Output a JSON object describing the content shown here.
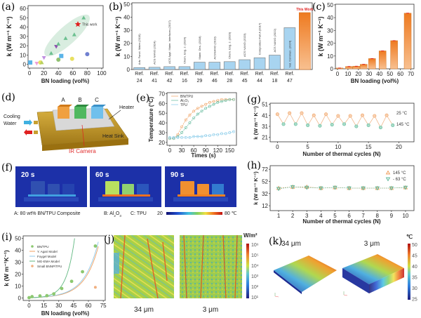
{
  "labels": {
    "a": "(a)",
    "b": "(b)",
    "c": "(c)",
    "d": "(d)",
    "e": "(e)",
    "f": "(f)",
    "g": "(g)",
    "h": "(h)",
    "i": "(i)",
    "j": "(j)",
    "k": "(k)"
  },
  "colors": {
    "accent": "#f08a30",
    "teal": "#5fb89a",
    "blue_bar": "#a8d4f0",
    "red": "#e02020"
  },
  "chart_data": [
    {
      "id": "a",
      "type": "scatter",
      "xlabel": "BN loading (vol%)",
      "ylabel": "k (W m⁻¹ K⁻¹)",
      "xlim": [
        0,
        100
      ],
      "ylim": [
        0,
        60
      ],
      "xticks": [
        "0",
        "20",
        "40",
        "60",
        "80",
        "100"
      ],
      "yticks": [
        "0",
        "10",
        "20",
        "30",
        "40",
        "50",
        "60"
      ],
      "points": [
        {
          "x": 1,
          "y": 2,
          "marker": "square",
          "color": "#5ab4e8"
        },
        {
          "x": 10,
          "y": 1,
          "marker": "down-triangle",
          "color": "#f0a0d8"
        },
        {
          "x": 15,
          "y": 2,
          "marker": "circle",
          "color": "#e8e060"
        },
        {
          "x": 17,
          "y": 2,
          "marker": "triangle",
          "color": "#b8d060"
        },
        {
          "x": 20,
          "y": 7,
          "marker": "down-triangle",
          "color": "#c090e0"
        },
        {
          "x": 30,
          "y": 12,
          "marker": "triangle",
          "color": "#6cc090"
        },
        {
          "x": 37,
          "y": 19,
          "marker": "down-triangle",
          "color": "#9050b0"
        },
        {
          "x": 40,
          "y": 22,
          "marker": "triangle",
          "color": "#6cc090"
        },
        {
          "x": 40,
          "y": 5,
          "marker": "circle",
          "color": "#90c070"
        },
        {
          "x": 44,
          "y": 9,
          "marker": "square",
          "color": "#5ab4e8"
        },
        {
          "x": 50,
          "y": 28,
          "marker": "triangle",
          "color": "#6cc090"
        },
        {
          "x": 59,
          "y": 6,
          "marker": "circle",
          "color": "#e8e060"
        },
        {
          "x": 62,
          "y": 32,
          "marker": "triangle",
          "color": "#6cc090"
        },
        {
          "x": 75,
          "y": 50,
          "marker": "triangle",
          "color": "#6cc090"
        },
        {
          "x": 80,
          "y": 11,
          "marker": "circle",
          "color": "#7080d0"
        }
      ],
      "highlight": {
        "x": 67,
        "y": 43,
        "marker": "star",
        "color": "#e02020",
        "label": "This work"
      }
    },
    {
      "id": "b",
      "type": "bar",
      "ylabel": "k (W m⁻¹ K⁻¹)",
      "ylim": [
        0,
        50
      ],
      "yticks": [
        "0",
        "10",
        "20",
        "30",
        "40",
        "50"
      ],
      "categories": [
        [
          "Ref.",
          "24"
        ],
        [
          "Ref.",
          "41"
        ],
        [
          "Ref.",
          "42"
        ],
        [
          "Ref.",
          "16"
        ],
        [
          "Ref.",
          "29"
        ],
        [
          "Ref.",
          "46"
        ],
        [
          "Ref.",
          "28"
        ],
        [
          "Ref.",
          "45"
        ],
        [
          "Ref.",
          "44"
        ],
        [
          "Ref.",
          "18"
        ],
        [
          "Ref.",
          "47"
        ],
        [
          "",
          ""
        ]
      ],
      "journals": [
        "Adv. Funct. Mater (2019)",
        "ACS NANO (2024)",
        "ACS Appl. Mater. Interfaces (2017)",
        "Chem. Eng. J. (2024)",
        "Mater. Des. (2018)",
        "ACSNANO (2019)",
        "Chem. Eng. J. (2020)",
        "ACS NANO (2023)",
        "Composites Part A (2017)",
        "ACS NANO (2022)",
        "Nat. Commun. (2024)",
        "This Work"
      ],
      "values": [
        1.5,
        1.7,
        2.2,
        2.2,
        5.6,
        5.6,
        6.0,
        7.5,
        9.0,
        11.0,
        32.0,
        43.5
      ]
    },
    {
      "id": "c",
      "type": "bar",
      "xlabel": "BN loading (vol%)",
      "ylabel": "k (W m⁻¹ K⁻¹)",
      "xlim": [
        0,
        70
      ],
      "ylim": [
        0,
        50
      ],
      "xticks": [
        "0",
        "10",
        "20",
        "30",
        "40",
        "50",
        "60",
        "70"
      ],
      "yticks": [
        "0",
        "10",
        "20",
        "30",
        "40",
        "50"
      ],
      "x": [
        2,
        11,
        18,
        25,
        33,
        43,
        54,
        67
      ],
      "values": [
        0.6,
        1.8,
        2.0,
        3.5,
        8.0,
        14.0,
        22.0,
        43.5
      ]
    },
    {
      "id": "e",
      "type": "line",
      "xlabel": "Times (s)",
      "ylabel": "Temperature (°C)",
      "xlim": [
        0,
        160
      ],
      "ylim": [
        20,
        70
      ],
      "xticks": [
        "0",
        "30",
        "60",
        "90",
        "120",
        "150"
      ],
      "yticks": [
        "20",
        "30",
        "40",
        "50",
        "60",
        "70"
      ],
      "x": [
        0,
        10,
        20,
        30,
        40,
        50,
        60,
        70,
        80,
        90,
        100,
        110,
        120,
        130,
        140,
        150,
        160
      ],
      "series": [
        {
          "name": "BN/TPU",
          "color": "#f0a060",
          "values": [
            24,
            24,
            28,
            36,
            43,
            48,
            52,
            55,
            57,
            59,
            61,
            62,
            63,
            64,
            64,
            64,
            64
          ]
        },
        {
          "name": "Al₂O₃",
          "color": "#5fb89a",
          "values": [
            24,
            24,
            26,
            30,
            35,
            40,
            45,
            49,
            52,
            55,
            57,
            59,
            61,
            62,
            63,
            64,
            64
          ]
        },
        {
          "name": "TPU",
          "color": "#80c8e8",
          "values": [
            25,
            25,
            25,
            25,
            25,
            25,
            26,
            26,
            26,
            27,
            27,
            28,
            28,
            29,
            29,
            30,
            31
          ]
        }
      ]
    },
    {
      "id": "g",
      "type": "line",
      "xlabel": "Number of thermal cycles (N)",
      "ylabel": "k (W m⁻¹ K⁻¹)",
      "xlim": [
        0,
        20
      ],
      "ylim": [
        21,
        51
      ],
      "xticks": [
        "0",
        "5",
        "10",
        "15",
        "20"
      ],
      "yticks": [
        "21",
        "31",
        "41",
        "51"
      ],
      "x": [
        0,
        1,
        2,
        3,
        4,
        5,
        6,
        7,
        8,
        9,
        10,
        11,
        12,
        13,
        14,
        15,
        16,
        17,
        18,
        19
      ],
      "values": [
        42,
        33,
        43,
        33,
        43,
        32,
        41,
        31.5,
        42,
        32.5,
        40.5,
        33,
        40.5,
        31,
        41,
        32,
        40.5,
        30,
        41,
        32
      ],
      "annotations": [
        "25 °C",
        "145 °C"
      ]
    },
    {
      "id": "h",
      "type": "line",
      "xlabel": "Number of thermal cycles (N)",
      "ylabel": "k (W m⁻¹ K⁻¹)",
      "xlim": [
        1,
        10
      ],
      "ylim": [
        12,
        72
      ],
      "xticks": [
        "1",
        "2",
        "3",
        "4",
        "5",
        "6",
        "7",
        "8",
        "9",
        "10"
      ],
      "yticks": [
        "12",
        "32",
        "52",
        "72"
      ],
      "x": [
        1,
        2,
        3,
        4,
        5,
        6,
        7,
        8,
        9,
        10
      ],
      "series": [
        {
          "name": "145 °C",
          "color": "#f0a060",
          "marker": "triangle",
          "values": [
            41,
            43,
            43,
            41,
            42,
            41,
            41,
            41,
            41,
            42
          ]
        },
        {
          "name": "- 63 °C",
          "color": "#5fb89a",
          "marker": "down-triangle",
          "values": [
            40,
            43,
            42,
            41,
            42,
            41,
            41,
            41,
            41,
            42
          ]
        }
      ]
    },
    {
      "id": "i",
      "type": "scatter",
      "xlabel": "BN loading (vol%)",
      "ylabel": "k (W m⁻¹K⁻¹)",
      "xlim": [
        0,
        75
      ],
      "ylim": [
        0,
        50
      ],
      "xticks": [
        "0",
        "15",
        "30",
        "45",
        "60",
        "75"
      ],
      "yticks": [
        "0",
        "10",
        "20",
        "30",
        "40",
        "50"
      ],
      "series": [
        {
          "name": "BN/TPU",
          "color": "#8cc870",
          "x": [
            0,
            3,
            11,
            18,
            25,
            33,
            43,
            54,
            67
          ],
          "values": [
            0.3,
            1.2,
            1.8,
            2.0,
            3.5,
            8.0,
            14.0,
            22.0,
            43.5
          ]
        },
        {
          "name": "Y. Agari Model",
          "color": "#f0a060",
          "line": true
        },
        {
          "name": "Foygel Model",
          "color": "#90c8e8",
          "line": true
        },
        {
          "name": "MG-EMA Model",
          "color": "#60b880",
          "line": true
        },
        {
          "name": "Small BNNP/TPU",
          "color": "#f0b080",
          "x": [
            67
          ],
          "values": [
            9
          ]
        }
      ]
    }
  ],
  "diagram_d": {
    "cubes": [
      "A",
      "B",
      "C"
    ],
    "heater": "Heater",
    "cooling": [
      "Cooling",
      "Water"
    ],
    "heat_sink": "Heat Sink",
    "ir_camera": "IR Camera"
  },
  "panel_f": {
    "times": [
      "20 s",
      "60 s",
      "90 s"
    ],
    "caption_a": "A: 80 wt% BN/TPU Composite",
    "caption_b": "B: Al",
    "caption_b_sub": "2",
    "caption_b2": "O",
    "caption_b_sub2": "3",
    "caption_c": "C: TPU",
    "scale_min": "20",
    "scale_max": "80 ℃"
  },
  "panel_j": {
    "unit": "W/m²",
    "scale": [
      "10⁶",
      "10⁵",
      "10⁴",
      "10³",
      "10²",
      "10¹"
    ],
    "captions": [
      "34 μm",
      "3 μm"
    ]
  },
  "panel_k": {
    "unit": "℃",
    "scale": [
      "50",
      "45",
      "40",
      "35",
      "30",
      "25"
    ],
    "captions": [
      "34 μm",
      "3 μm"
    ]
  }
}
